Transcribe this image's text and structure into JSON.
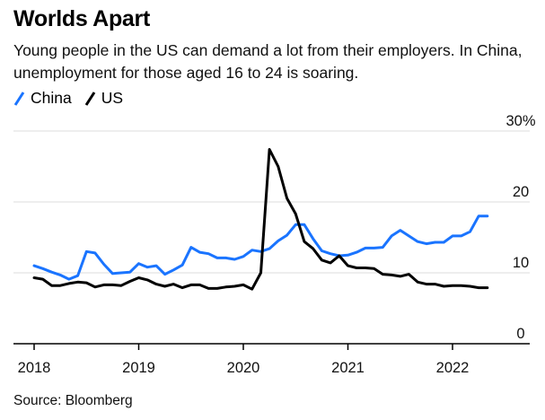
{
  "title": "Worlds Apart",
  "subtitle": "Young people in the US can demand a lot from their employers. In China, unemployment for those aged 16 to 24 is soaring.",
  "source": "Source: Bloomberg",
  "colors": {
    "china": "#1a74ff",
    "us": "#000000",
    "grid": "#dddddd",
    "axis": "#000000"
  },
  "legend": [
    {
      "label": "China",
      "color": "#1a74ff",
      "icon": "slash-swatch-icon"
    },
    {
      "label": "US",
      "color": "#000000",
      "icon": "slash-swatch-icon"
    }
  ],
  "chart_data": {
    "type": "line",
    "title": "Worlds Apart",
    "xlabel": "",
    "ylabel": "",
    "xlim": [
      2018,
      2022.75
    ],
    "ylim": [
      0,
      30
    ],
    "y_ticks": [
      0,
      10,
      20,
      30
    ],
    "y_tick_labels": [
      "0",
      "10",
      "20",
      "30%"
    ],
    "x_ticks": [
      2018,
      2019,
      2020,
      2021,
      2022
    ],
    "x_tick_labels": [
      "2018",
      "2019",
      "2020",
      "2021",
      "2022"
    ],
    "grid": "horizontal",
    "legend_position": "top-left",
    "series": [
      {
        "name": "China",
        "color": "#1a74ff",
        "x": [
          2018.0,
          2018.083,
          2018.167,
          2018.25,
          2018.333,
          2018.417,
          2018.5,
          2018.583,
          2018.667,
          2018.75,
          2018.833,
          2018.917,
          2019.0,
          2019.083,
          2019.167,
          2019.25,
          2019.333,
          2019.417,
          2019.5,
          2019.583,
          2019.667,
          2019.75,
          2019.833,
          2019.917,
          2020.0,
          2020.083,
          2020.167,
          2020.25,
          2020.333,
          2020.417,
          2020.5,
          2020.583,
          2020.667,
          2020.75,
          2020.833,
          2020.917,
          2021.0,
          2021.083,
          2021.167,
          2021.25,
          2021.333,
          2021.417,
          2021.5,
          2021.583,
          2021.667,
          2021.75,
          2021.833,
          2021.917,
          2022.0,
          2022.083,
          2022.167,
          2022.25,
          2022.333
        ],
        "values": [
          11.0,
          10.6,
          10.1,
          9.7,
          9.1,
          9.6,
          13.0,
          12.8,
          11.2,
          9.9,
          10.0,
          10.1,
          11.3,
          10.8,
          11.0,
          9.8,
          10.4,
          11.1,
          13.6,
          12.9,
          12.7,
          12.1,
          12.1,
          11.9,
          12.3,
          13.2,
          13.0,
          13.4,
          14.5,
          15.3,
          16.8,
          16.8,
          14.8,
          13.1,
          12.7,
          12.4,
          12.5,
          12.9,
          13.5,
          13.5,
          13.6,
          15.2,
          16.0,
          15.2,
          14.4,
          14.1,
          14.3,
          14.3,
          15.2,
          15.2,
          15.8,
          18.0,
          18.0
        ]
      },
      {
        "name": "US",
        "color": "#000000",
        "x": [
          2018.0,
          2018.083,
          2018.167,
          2018.25,
          2018.333,
          2018.417,
          2018.5,
          2018.583,
          2018.667,
          2018.75,
          2018.833,
          2018.917,
          2019.0,
          2019.083,
          2019.167,
          2019.25,
          2019.333,
          2019.417,
          2019.5,
          2019.583,
          2019.667,
          2019.75,
          2019.833,
          2019.917,
          2020.0,
          2020.083,
          2020.167,
          2020.25,
          2020.333,
          2020.417,
          2020.5,
          2020.583,
          2020.667,
          2020.75,
          2020.833,
          2020.917,
          2021.0,
          2021.083,
          2021.167,
          2021.25,
          2021.333,
          2021.417,
          2021.5,
          2021.583,
          2021.667,
          2021.75,
          2021.833,
          2021.917,
          2022.0,
          2022.083,
          2022.167,
          2022.25,
          2022.333
        ],
        "values": [
          9.3,
          9.1,
          8.2,
          8.2,
          8.5,
          8.7,
          8.6,
          8.0,
          8.3,
          8.3,
          8.2,
          8.8,
          9.3,
          9.0,
          8.4,
          8.1,
          8.4,
          7.9,
          8.3,
          8.3,
          7.8,
          7.8,
          8.0,
          8.1,
          8.3,
          7.7,
          10.0,
          27.4,
          25.0,
          20.5,
          18.3,
          14.4,
          13.4,
          11.8,
          11.4,
          12.4,
          11.0,
          10.7,
          10.7,
          10.6,
          9.8,
          9.7,
          9.5,
          9.8,
          8.7,
          8.4,
          8.4,
          8.1,
          8.2,
          8.2,
          8.1,
          7.9,
          7.9
        ]
      }
    ]
  }
}
